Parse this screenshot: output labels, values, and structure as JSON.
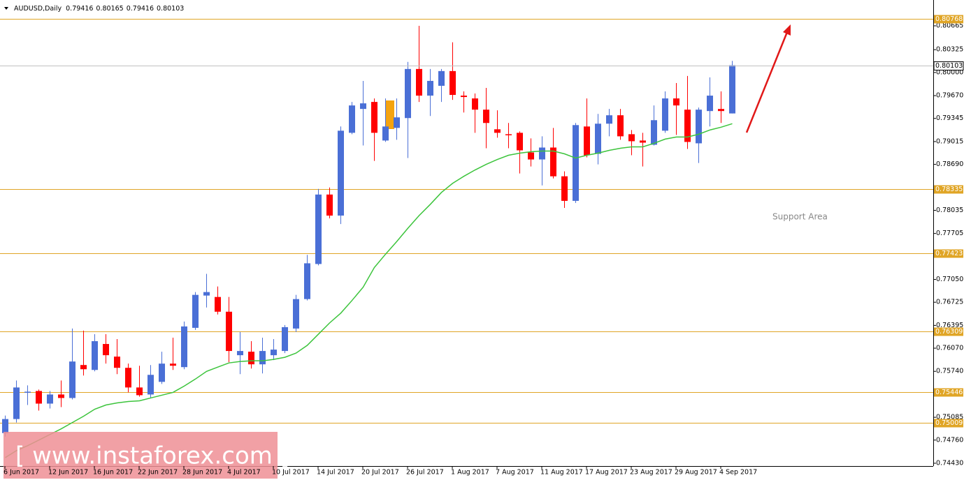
{
  "chart_data": {
    "type": "candlestick",
    "title": "AUDUSD,Daily",
    "categories": [
      "6 Jun 2017",
      null,
      null,
      null,
      "12 Jun 2017",
      null,
      null,
      null,
      "16 Jun 2017",
      null,
      null,
      null,
      "22 Jun 2017",
      null,
      null,
      null,
      "28 Jun 2017",
      null,
      null,
      null,
      "4 Jul 2017",
      null,
      null,
      null,
      "10 Jul 2017",
      null,
      null,
      null,
      "14 Jul 2017",
      null,
      null,
      null,
      "20 Jul 2017",
      null,
      null,
      null,
      "26 Jul 2017",
      null,
      null,
      null,
      "1 Aug 2017",
      null,
      null,
      null,
      "7 Aug 2017",
      null,
      null,
      null,
      "11 Aug 2017",
      null,
      null,
      null,
      "17 Aug 2017",
      null,
      null,
      null,
      "23 Aug 2017",
      null,
      null,
      null,
      "29 Aug 2017",
      null,
      null,
      null,
      "4 Sep 2017",
      null
    ],
    "open": [
      0.7486,
      0.7506,
      0.7544,
      0.7546,
      0.7528,
      0.7541,
      0.7536,
      0.7583,
      0.7576,
      0.7613,
      0.7595,
      0.7579,
      0.7551,
      0.7541,
      0.7559,
      0.7585,
      0.758,
      0.7636,
      0.7682,
      0.768,
      0.7659,
      0.7597,
      0.7602,
      0.7584,
      0.7597,
      0.7603,
      0.7635,
      0.7677,
      0.7727,
      0.7826,
      0.7796,
      0.7914,
      0.7948,
      0.7958,
      0.7903,
      0.7921,
      0.7935,
      0.8005,
      0.7967,
      0.7981,
      0.8002,
      0.7967,
      0.7963,
      0.7947,
      0.7919,
      0.7912,
      0.7914,
      0.7886,
      0.7876,
      0.7893,
      0.7852,
      0.7817,
      0.7923,
      0.7884,
      0.7927,
      0.7939,
      0.7912,
      0.7903,
      0.7897,
      0.7917,
      0.7963,
      0.7947,
      0.7899,
      0.7945,
      0.7948,
      0.79416
    ],
    "high": [
      0.7511,
      0.7561,
      0.7554,
      0.7548,
      0.7546,
      0.7561,
      0.7635,
      0.7632,
      0.7627,
      0.7627,
      0.762,
      0.7585,
      0.7582,
      0.7583,
      0.7602,
      0.7622,
      0.7645,
      0.7687,
      0.7713,
      0.7695,
      0.768,
      0.763,
      0.7617,
      0.7622,
      0.762,
      0.764,
      0.7683,
      0.774,
      0.7834,
      0.7836,
      0.7923,
      0.7958,
      0.7988,
      0.7963,
      0.7963,
      0.7963,
      0.8015,
      0.80665,
      0.8005,
      0.8005,
      0.8043,
      0.7973,
      0.797,
      0.7978,
      0.7946,
      0.7928,
      0.7916,
      0.7906,
      0.7909,
      0.7921,
      0.7859,
      0.7928,
      0.7963,
      0.7941,
      0.7948,
      0.7948,
      0.7918,
      0.7914,
      0.7953,
      0.7973,
      0.7985,
      0.7995,
      0.795,
      0.7993,
      0.7973,
      0.80165
    ],
    "low": [
      0.7481,
      0.7501,
      0.7526,
      0.7518,
      0.7521,
      0.7523,
      0.7534,
      0.7568,
      0.7574,
      0.7585,
      0.757,
      0.7544,
      0.7538,
      0.7536,
      0.7556,
      0.7576,
      0.7577,
      0.7633,
      0.7665,
      0.7655,
      0.7587,
      0.757,
      0.7578,
      0.7571,
      0.759,
      0.76,
      0.763,
      0.7675,
      0.7725,
      0.7792,
      0.7784,
      0.7912,
      0.7896,
      0.7874,
      0.7901,
      0.7904,
      0.7878,
      0.7958,
      0.7938,
      0.7958,
      0.7961,
      0.7943,
      0.7914,
      0.7892,
      0.7907,
      0.7892,
      0.7856,
      0.7866,
      0.7839,
      0.7849,
      0.7807,
      0.7814,
      0.7879,
      0.7869,
      0.7909,
      0.7904,
      0.7882,
      0.7866,
      0.7896,
      0.7914,
      0.7911,
      0.7891,
      0.7871,
      0.7923,
      0.7928,
      0.79416
    ],
    "close": [
      0.7506,
      0.7551,
      0.7545,
      0.7528,
      0.7541,
      0.7536,
      0.7588,
      0.7577,
      0.7617,
      0.7597,
      0.7579,
      0.7551,
      0.754,
      0.7569,
      0.7585,
      0.7582,
      0.7638,
      0.7683,
      0.7687,
      0.7659,
      0.7603,
      0.7603,
      0.7584,
      0.7603,
      0.7605,
      0.7637,
      0.7677,
      0.7728,
      0.7826,
      0.7796,
      0.7917,
      0.7953,
      0.7956,
      0.7914,
      0.7923,
      0.7936,
      0.8005,
      0.7967,
      0.7988,
      0.8002,
      0.7968,
      0.7965,
      0.7947,
      0.7928,
      0.7914,
      0.7911,
      0.7889,
      0.7876,
      0.7893,
      0.7852,
      0.7817,
      0.7925,
      0.7882,
      0.7927,
      0.7939,
      0.7909,
      0.7902,
      0.79,
      0.7932,
      0.7963,
      0.7953,
      0.7901,
      0.7947,
      0.7967,
      0.7945,
      0.80103
    ],
    "up_color": "#4a6fd6",
    "down_color": "#ff0000",
    "moving_average": {
      "color": "#3cc43c",
      "values": [
        0.7451,
        0.7461,
        0.7468,
        0.7476,
        0.7484,
        0.7492,
        0.7501,
        0.751,
        0.752,
        0.7526,
        0.7529,
        0.7531,
        0.7532,
        0.7536,
        0.754,
        0.7544,
        0.7553,
        0.7563,
        0.7574,
        0.758,
        0.7586,
        0.7588,
        0.7589,
        0.7589,
        0.7591,
        0.7594,
        0.76,
        0.7611,
        0.7627,
        0.7643,
        0.7657,
        0.7675,
        0.7694,
        0.7722,
        0.7741,
        0.7759,
        0.7778,
        0.7796,
        0.7812,
        0.7829,
        0.7842,
        0.7852,
        0.7861,
        0.7869,
        0.7876,
        0.7882,
        0.7885,
        0.7887,
        0.7888,
        0.7888,
        0.7884,
        0.7878,
        0.7882,
        0.7885,
        0.7889,
        0.7892,
        0.7894,
        0.7894,
        0.7899,
        0.7905,
        0.7908,
        0.7908,
        0.7912,
        0.7918,
        0.7922,
        0.7927
      ]
    },
    "levels": [
      0.80768,
      0.78335,
      0.77423,
      0.76309,
      0.75446,
      0.75009
    ],
    "level_color": "#e0a526",
    "ylim": [
      0.7439,
      0.81033
    ],
    "yticks": [
      0.80665,
      0.80325,
      {
        "value": 0.8,
        "label": "0.80000"
      },
      {
        "value": 0.7967,
        "label": "0.79670"
      },
      0.79345,
      0.79015,
      {
        "value": 0.7869,
        "label": "0.78690"
      },
      0.78035,
      0.77705,
      {
        "value": 0.7705,
        "label": "0.77050"
      },
      0.76725,
      0.76395,
      {
        "value": 0.7607,
        "label": "0.76070"
      },
      {
        "value": 0.7574,
        "label": "0.75740"
      },
      0.75085,
      {
        "value": 0.7476,
        "label": "0.74760"
      },
      {
        "value": 0.7443,
        "label": "0.74430"
      }
    ],
    "annotations": [
      "Support Area"
    ],
    "watermark": "[ www.instaforex.com ]"
  }
}
